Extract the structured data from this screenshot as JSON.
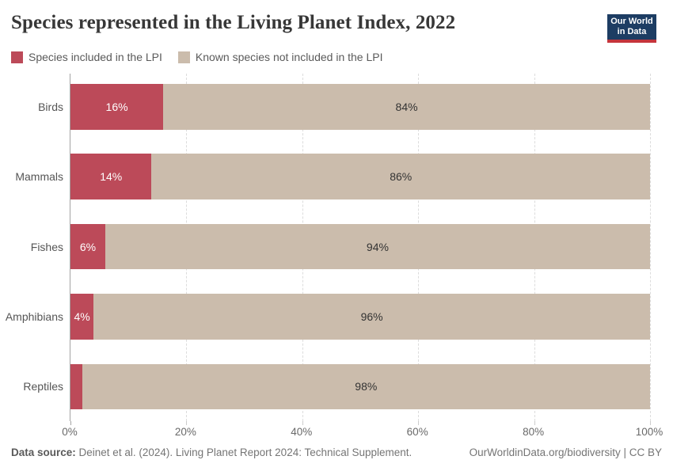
{
  "logo": {
    "line1": "Our World",
    "line2": "in Data",
    "bg_color": "#1d3d63",
    "accent_color": "#c5353c"
  },
  "chart_data": {
    "type": "bar",
    "orientation": "horizontal",
    "stacked": true,
    "title": "Species represented in the Living Planet Index, 2022",
    "categories": [
      "Birds",
      "Mammals",
      "Fishes",
      "Amphibians",
      "Reptiles"
    ],
    "series": [
      {
        "name": "Species included in the LPI",
        "color": "#bc4a59",
        "values": [
          16,
          14,
          6,
          4,
          2
        ],
        "labels": [
          "16%",
          "14%",
          "6%",
          "4%",
          ""
        ],
        "label_color": "#ffffff"
      },
      {
        "name": "Known species not included in the LPI",
        "color": "#cbbcac",
        "values": [
          84,
          86,
          94,
          96,
          98
        ],
        "labels": [
          "84%",
          "86%",
          "94%",
          "96%",
          "98%"
        ],
        "label_color": "#333333"
      }
    ],
    "x_ticks": [
      {
        "value": 0,
        "label": "0%"
      },
      {
        "value": 20,
        "label": "20%"
      },
      {
        "value": 40,
        "label": "40%"
      },
      {
        "value": 60,
        "label": "60%"
      },
      {
        "value": 80,
        "label": "80%"
      },
      {
        "value": 100,
        "label": "100%"
      }
    ],
    "xlim": [
      0,
      100
    ],
    "grid": "vertical-dashed",
    "legend_position": "top-left"
  },
  "footer": {
    "source_label": "Data source:",
    "source_text": " Deinet et al. (2024). Living Planet Report 2024: Technical Supplement.",
    "right_text": "OurWorldinData.org/biodiversity | CC BY"
  }
}
